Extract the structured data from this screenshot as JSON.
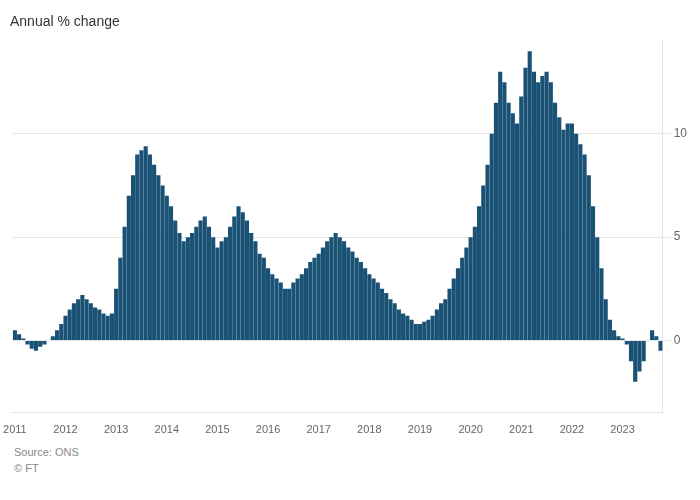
{
  "chart_data": {
    "type": "bar",
    "title": "Annual % change",
    "annotations": [
      "Source: ONS",
      "© FT"
    ],
    "categories": [
      "2011",
      null,
      null,
      null,
      null,
      null,
      null,
      null,
      null,
      null,
      null,
      null,
      "2012",
      null,
      null,
      null,
      null,
      null,
      null,
      null,
      null,
      null,
      null,
      null,
      "2013",
      null,
      null,
      null,
      null,
      null,
      null,
      null,
      null,
      null,
      null,
      null,
      "2014",
      null,
      null,
      null,
      null,
      null,
      null,
      null,
      null,
      null,
      null,
      null,
      "2015",
      null,
      null,
      null,
      null,
      null,
      null,
      null,
      null,
      null,
      null,
      null,
      "2016",
      null,
      null,
      null,
      null,
      null,
      null,
      null,
      null,
      null,
      null,
      null,
      "2017",
      null,
      null,
      null,
      null,
      null,
      null,
      null,
      null,
      null,
      null,
      null,
      "2018",
      null,
      null,
      null,
      null,
      null,
      null,
      null,
      null,
      null,
      null,
      null,
      "2019",
      null,
      null,
      null,
      null,
      null,
      null,
      null,
      null,
      null,
      null,
      null,
      "2020",
      null,
      null,
      null,
      null,
      null,
      null,
      null,
      null,
      null,
      null,
      null,
      "2021",
      null,
      null,
      null,
      null,
      null,
      null,
      null,
      null,
      null,
      null,
      null,
      "2022",
      null,
      null,
      null,
      null,
      null,
      null,
      null,
      null,
      null,
      null,
      null,
      "2023",
      null,
      null,
      null,
      null,
      null,
      null,
      null,
      null,
      null
    ],
    "values": [
      0.5,
      0.3,
      0.1,
      -0.2,
      -0.4,
      -0.5,
      -0.3,
      -0.2,
      0.0,
      0.2,
      0.5,
      0.8,
      1.2,
      1.5,
      1.8,
      2.0,
      2.2,
      2.0,
      1.8,
      1.6,
      1.5,
      1.3,
      1.2,
      1.3,
      2.5,
      4.0,
      5.5,
      7.0,
      8.0,
      9.0,
      9.2,
      9.4,
      9.0,
      8.5,
      8.0,
      7.5,
      7.0,
      6.5,
      5.8,
      5.2,
      4.8,
      5.0,
      5.2,
      5.5,
      5.8,
      6.0,
      5.5,
      5.0,
      4.5,
      4.8,
      5.0,
      5.5,
      6.0,
      6.5,
      6.2,
      5.8,
      5.2,
      4.8,
      4.2,
      4.0,
      3.5,
      3.2,
      3.0,
      2.8,
      2.5,
      2.5,
      2.8,
      3.0,
      3.2,
      3.5,
      3.8,
      4.0,
      4.2,
      4.5,
      4.8,
      5.0,
      5.2,
      5.0,
      4.8,
      4.5,
      4.3,
      4.0,
      3.8,
      3.5,
      3.2,
      3.0,
      2.8,
      2.5,
      2.3,
      2.0,
      1.8,
      1.5,
      1.3,
      1.2,
      1.0,
      0.8,
      0.8,
      0.9,
      1.0,
      1.2,
      1.5,
      1.8,
      2.0,
      2.5,
      3.0,
      3.5,
      4.0,
      4.5,
      5.0,
      5.5,
      6.5,
      7.5,
      8.5,
      10.0,
      11.5,
      13.0,
      12.5,
      11.5,
      11.0,
      10.5,
      11.8,
      13.2,
      14.0,
      13.0,
      12.5,
      12.8,
      13.0,
      12.5,
      11.5,
      10.8,
      10.2,
      10.5,
      10.5,
      10.0,
      9.5,
      9.0,
      8.0,
      6.5,
      5.0,
      3.5,
      2.0,
      1.0,
      0.5,
      0.2,
      0.1,
      -0.2,
      -1.0,
      -2.0,
      -1.5,
      -1.0,
      0.0,
      0.5,
      0.2,
      -0.5
    ],
    "color": "#1a5276",
    "ylim": [
      -3.5,
      14.5
    ],
    "yticks": [
      0,
      5,
      10
    ],
    "grid": true
  }
}
